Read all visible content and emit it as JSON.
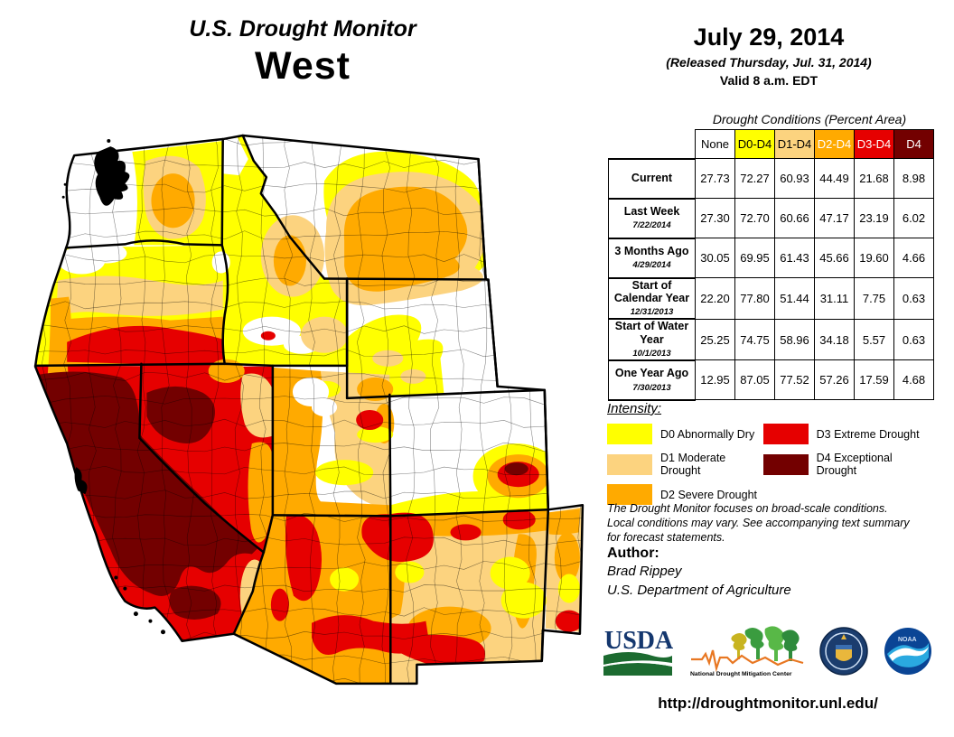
{
  "header": {
    "title": "U.S. Drought Monitor",
    "region": "West",
    "date": "July 29, 2014",
    "released": "(Released Thursday, Jul. 31, 2014)",
    "valid": "Valid 8 a.m. EDT"
  },
  "table": {
    "title": "Drought Conditions (Percent Area)",
    "columns": [
      "None",
      "D0-D4",
      "D1-D4",
      "D2-D4",
      "D3-D4",
      "D4"
    ],
    "column_colors": [
      "#FFFFFF",
      "#FFFF00",
      "#FCD37F",
      "#FFAA00",
      "#E60000",
      "#730000"
    ],
    "column_text_colors": [
      "#000000",
      "#000000",
      "#000000",
      "#FFFFFF",
      "#FFFFFF",
      "#FFFFFF"
    ],
    "rows": [
      {
        "label": "Current",
        "date": "",
        "values": [
          "27.73",
          "72.27",
          "60.93",
          "44.49",
          "21.68",
          "8.98"
        ]
      },
      {
        "label": "Last Week",
        "date": "7/22/2014",
        "values": [
          "27.30",
          "72.70",
          "60.66",
          "47.17",
          "23.19",
          "6.02"
        ]
      },
      {
        "label": "3 Months Ago",
        "date": "4/29/2014",
        "values": [
          "30.05",
          "69.95",
          "61.43",
          "45.66",
          "19.60",
          "4.66"
        ]
      },
      {
        "label": "Start of Calendar Year",
        "date": "12/31/2013",
        "values": [
          "22.20",
          "77.80",
          "51.44",
          "31.11",
          "7.75",
          "0.63"
        ]
      },
      {
        "label": "Start of Water Year",
        "date": "10/1/2013",
        "values": [
          "25.25",
          "74.75",
          "58.96",
          "34.18",
          "5.57",
          "0.63"
        ]
      },
      {
        "label": "One Year Ago",
        "date": "7/30/2013",
        "values": [
          "12.95",
          "87.05",
          "77.52",
          "57.26",
          "17.59",
          "4.68"
        ]
      }
    ]
  },
  "legend": {
    "title": "Intensity:",
    "items": [
      {
        "code": "D0",
        "label": "D0 Abnormally Dry",
        "color": "#FFFF00",
        "column": "left"
      },
      {
        "code": "D1",
        "label": "D1 Moderate Drought",
        "color": "#FCD37F",
        "column": "left"
      },
      {
        "code": "D2",
        "label": "D2 Severe Drought",
        "color": "#FFAA00",
        "column": "left"
      },
      {
        "code": "D3",
        "label": "D3 Extreme Drought",
        "color": "#E60000",
        "column": "right"
      },
      {
        "code": "D4",
        "label": "D4 Exceptional Drought",
        "color": "#730000",
        "column": "right"
      }
    ]
  },
  "notes": {
    "disclaimer_lines": [
      "The Drought Monitor focuses on broad-scale conditions.",
      "Local conditions may vary. See accompanying text summary",
      "for forecast statements."
    ]
  },
  "author": {
    "heading": "Author:",
    "name": "Brad Rippey",
    "org": "U.S. Department of Agriculture"
  },
  "logos": {
    "usda_text": "USDA",
    "ndmc_text": "National Drought Mitigation Center",
    "noaa_text": "NOAA"
  },
  "footer": {
    "url": "http://droughtmonitor.unl.edu/"
  },
  "map": {
    "drought_colors": {
      "D0": "#FFFF00",
      "D1": "#FCD37F",
      "D2": "#FFAA00",
      "D3": "#E60000",
      "D4": "#730000",
      "none": "#FFFFFF"
    }
  }
}
